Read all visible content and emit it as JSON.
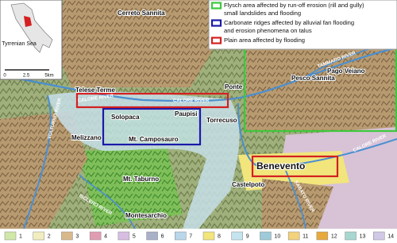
{
  "inset": {
    "sea_label": "Tyrrenian Sea",
    "scale": [
      "0",
      "2.5",
      "5km"
    ]
  },
  "legend": {
    "items": [
      {
        "color": "#3dc93d",
        "lines": [
          "Flysch area affected by run-off erosion (rill and gully)",
          "small landslides and flooding"
        ]
      },
      {
        "color": "#1a1aa8",
        "lines": [
          "Carbonate ridges affected by alluvial fan flooding",
          "and erosion phenomena on talus"
        ]
      },
      {
        "color": "#d42020",
        "lines": [
          "Plain area affected by flooding"
        ]
      }
    ]
  },
  "places": [
    "Cerreto Sannita",
    "Pesco Sannita",
    "Pago Veiano",
    "Telese Terme",
    "Ponte",
    "Paupisi",
    "Solopaca",
    "Torrecuso",
    "Melizzano",
    "Castelpoto",
    "Montesarchio"
  ],
  "highlight_place": "Benevento",
  "mountains": [
    "Mt. Camposauro",
    "Mt. Taburno"
  ],
  "rivers": [
    "CALORE RIVER",
    "CALORE RIVER",
    "VOLTURNO RIVER",
    "ISCLERO RIVER",
    "SABATO RIVER",
    "CALORE RIVER",
    "TAMMARO RIVER"
  ],
  "bottom_legend": {
    "items": [
      {
        "label": "1",
        "color": "#cfe8a8"
      },
      {
        "label": "2",
        "color": "#f2edbf"
      },
      {
        "label": "3",
        "color": "#d9b98c"
      },
      {
        "label": "4",
        "color": "#e29cb2"
      },
      {
        "label": "5",
        "color": "#d8bde2"
      },
      {
        "label": "6",
        "color": "#a9b1c9"
      },
      {
        "label": "7",
        "color": "#b9d6ea"
      },
      {
        "label": "8",
        "color": "#f1e57c"
      },
      {
        "label": "9",
        "color": "#c4e4ef"
      },
      {
        "label": "10",
        "color": "#9ecbd9"
      },
      {
        "label": "11",
        "color": "#f3d27c"
      },
      {
        "label": "12",
        "color": "#e8a93c"
      },
      {
        "label": "13",
        "color": "#a8d7d0"
      },
      {
        "label": "14",
        "color": "#d0c8e6"
      }
    ]
  }
}
